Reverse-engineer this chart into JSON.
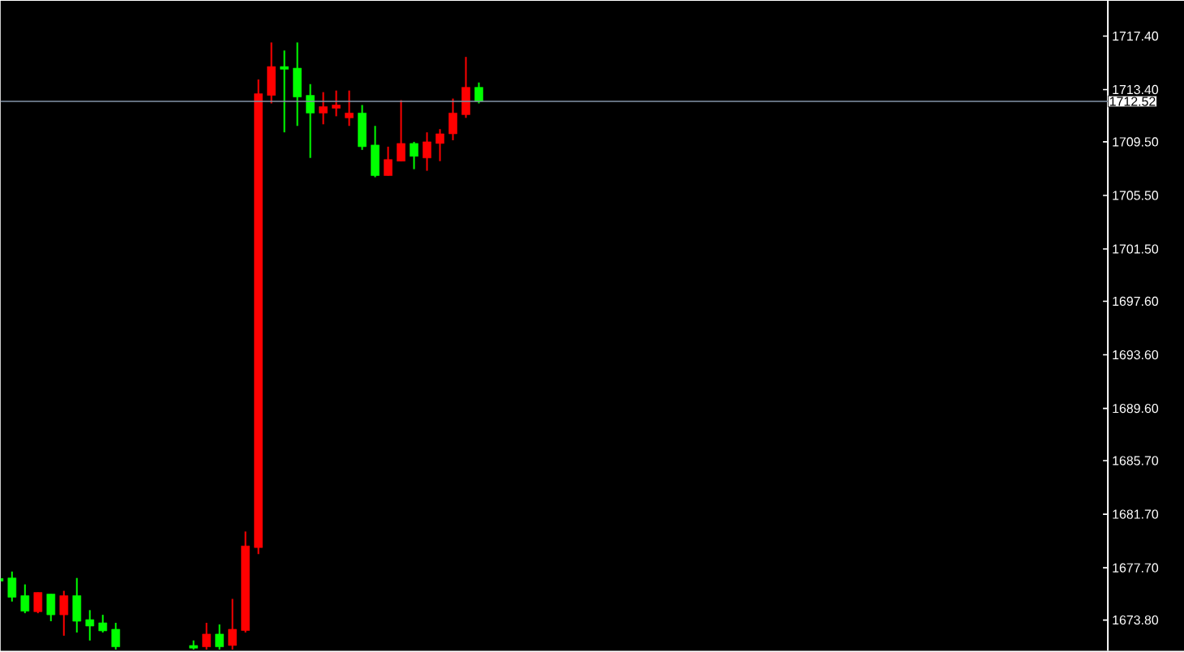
{
  "chart_data": {
    "type": "candlestick",
    "categories": [
      null,
      null,
      null,
      null,
      null,
      null,
      null,
      null,
      null,
      null,
      null,
      null,
      null,
      null,
      null,
      null,
      null,
      null,
      null,
      null,
      null,
      null,
      null,
      null,
      null,
      null,
      null,
      null,
      null,
      null,
      null,
      null,
      null,
      null,
      null,
      null,
      null,
      null,
      null,
      null,
      null,
      null,
      null,
      null,
      null,
      null,
      null,
      null,
      null,
      null,
      null,
      null,
      null,
      null,
      null,
      null,
      null,
      null,
      null,
      null,
      null,
      null,
      null,
      null,
      null,
      null,
      null,
      null,
      null,
      null,
      null,
      null,
      null,
      null,
      null,
      null,
      null,
      null,
      null,
      null,
      null,
      null,
      null,
      null,
      null,
      null
    ],
    "ohlc": [
      [
        1676.9,
        1677.0,
        1676.6,
        1676.7
      ],
      [
        1676.94,
        1677.42,
        1675.18,
        1675.5
      ],
      [
        1675.62,
        1676.46,
        1674.31,
        1674.46
      ],
      [
        1674.42,
        1675.86,
        1674.31,
        1675.86
      ],
      [
        1675.74,
        1675.74,
        1673.71,
        1674.19
      ],
      [
        1674.19,
        1675.98,
        1672.63,
        1675.62
      ],
      [
        1675.62,
        1676.94,
        1672.87,
        1673.71
      ],
      [
        1673.83,
        1674.54,
        1672.27,
        1673.35
      ],
      [
        1673.59,
        1674.19,
        1672.87,
        1672.99
      ],
      [
        1673.11,
        1673.59,
        1671.6,
        1671.8
      ],
      null,
      null,
      null,
      null,
      null,
      [
        1671.9,
        1672.27,
        1671.6,
        1671.7
      ],
      [
        1671.8,
        1673.59,
        1671.6,
        1672.75
      ],
      [
        1672.75,
        1673.47,
        1671.6,
        1671.8
      ],
      [
        1671.9,
        1675.38,
        1671.6,
        1673.11
      ],
      [
        1673.02,
        1680.41,
        1672.87,
        1679.33
      ],
      [
        1679.21,
        1714.16,
        1678.73,
        1713.09
      ],
      [
        1712.97,
        1716.92,
        1712.37,
        1715.12
      ],
      [
        1715.12,
        1716.32,
        1710.21,
        1714.92
      ],
      [
        1715.0,
        1716.92,
        1710.69,
        1712.85
      ],
      [
        1712.97,
        1713.81,
        1708.3,
        1711.65
      ],
      [
        1711.65,
        1713.21,
        1710.81,
        1712.13
      ],
      [
        1712.01,
        1713.33,
        1711.41,
        1712.25
      ],
      [
        1711.29,
        1713.33,
        1710.69,
        1711.65
      ],
      [
        1711.65,
        1712.25,
        1708.9,
        1709.14
      ],
      [
        1709.26,
        1710.69,
        1706.86,
        1706.98
      ],
      [
        1706.98,
        1709.14,
        1706.98,
        1708.18
      ],
      [
        1708.06,
        1712.61,
        1708.06,
        1709.38
      ],
      [
        1709.38,
        1709.5,
        1707.46,
        1708.42
      ],
      [
        1708.3,
        1710.21,
        1707.34,
        1709.5
      ],
      [
        1709.38,
        1710.45,
        1708.06,
        1710.1
      ],
      [
        1710.1,
        1712.73,
        1709.62,
        1711.65
      ],
      [
        1711.53,
        1715.84,
        1711.29,
        1713.57
      ],
      [
        1713.57,
        1713.93,
        1712.37,
        1712.52
      ],
      null,
      null,
      null,
      null,
      null,
      null,
      null,
      null,
      null,
      null,
      null,
      null,
      null,
      null,
      null,
      null,
      null,
      null,
      null,
      null,
      null,
      null,
      null,
      null,
      null,
      null,
      null,
      null,
      null,
      null,
      null,
      null,
      null,
      null,
      null,
      null,
      null,
      null,
      null,
      null,
      null,
      null,
      null,
      null,
      null,
      null,
      null,
      null
    ],
    "colors": [
      "#00ff00",
      "#00ff00",
      "#00ff00",
      "#ff0000",
      "#00ff00",
      "#ff0000",
      "#00ff00",
      "#00ff00",
      "#00ff00",
      "#00ff00",
      null,
      null,
      null,
      null,
      null,
      "#00ff00",
      "#ff0000",
      "#00ff00",
      "#ff0000",
      "#ff0000",
      "#ff0000",
      "#ff0000",
      "#00ff00",
      "#00ff00",
      "#00ff00",
      "#ff0000",
      "#ff0000",
      "#ff0000",
      "#00ff00",
      "#00ff00",
      "#ff0000",
      "#ff0000",
      "#00ff00",
      "#ff0000",
      "#ff0000",
      "#ff0000",
      "#ff0000",
      "#00ff00",
      null,
      null,
      null,
      null,
      null,
      null,
      null,
      null,
      null,
      null,
      null,
      null,
      null,
      null,
      null,
      null,
      null,
      null,
      null,
      null,
      null,
      null,
      null,
      null,
      null,
      null,
      null,
      null,
      null,
      null,
      null,
      null,
      null,
      null,
      null,
      null,
      null,
      null,
      null,
      null,
      null,
      null,
      null,
      null,
      null,
      null,
      null,
      null
    ],
    "ylim": [
      1671.5,
      1720.03
    ],
    "yticks": [
      {
        "value": 1717.4,
        "label": "1717.40"
      },
      {
        "value": 1713.4,
        "label": "1713.40"
      },
      {
        "value": 1709.5,
        "label": "1709.50"
      },
      {
        "value": 1705.5,
        "label": "1705.50"
      },
      {
        "value": 1701.5,
        "label": "1701.50"
      },
      {
        "value": 1697.6,
        "label": "1697.60"
      },
      {
        "value": 1693.6,
        "label": "1693.60"
      },
      {
        "value": 1689.6,
        "label": "1689.60"
      },
      {
        "value": 1685.7,
        "label": "1685.70"
      },
      {
        "value": 1681.7,
        "label": "1681.70"
      },
      {
        "value": 1677.7,
        "label": "1677.70"
      },
      {
        "value": 1673.8,
        "label": "1673.80"
      }
    ],
    "ref_lines": [
      {
        "axis": "y",
        "value": 1712.52,
        "label": "1712.52",
        "color": "#8394a8"
      }
    ],
    "tick_labels": "y"
  }
}
